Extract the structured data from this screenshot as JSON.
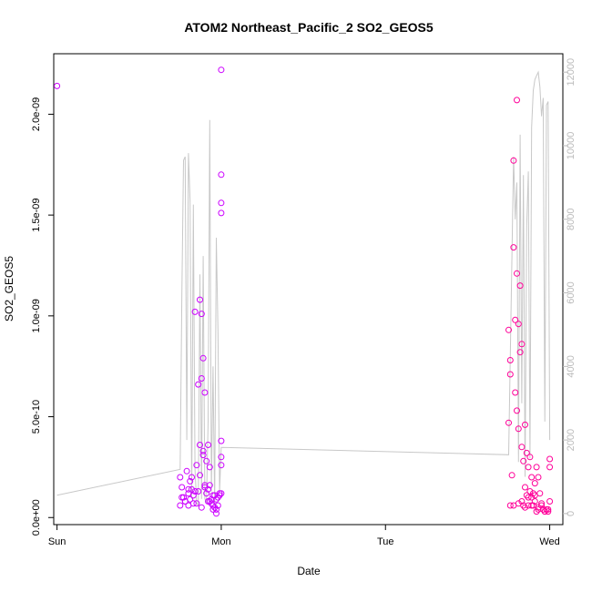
{
  "chart_data": {
    "type": "scatter",
    "title": "ATOM2 Northeast_Pacific_2 SO2_GEOS5",
    "xlabel": "Date",
    "ylabel": "SO2_GEOS5",
    "x_ticks": [
      "Sun",
      "Mon",
      "Tue",
      "Wed"
    ],
    "xlim": [
      -0.02,
      3.08
    ],
    "ylim": [
      -3.5e-11,
      2.3e-09
    ],
    "y_ticks": [
      "0.0e+00",
      "5.0e-10",
      "1.0e-09",
      "1.5e-09",
      "2.0e-09"
    ],
    "y_tick_values": [
      0,
      5e-10,
      1e-09,
      1.5e-09,
      2e-09
    ],
    "y2_ticks": [
      0,
      2000,
      4000,
      6000,
      8000,
      10000,
      12000
    ],
    "y2lim": [
      -300,
      12500
    ],
    "grid": false,
    "point_colors": [
      "#cc00ff",
      "#ff0099"
    ],
    "line_color": "#c8c8c8",
    "series": [
      {
        "kind": "points",
        "x": [
          0.0,
          0.75,
          0.75,
          0.76,
          0.77,
          0.78,
          0.79,
          0.8,
          0.8,
          0.81,
          0.82,
          0.83,
          0.84,
          0.85,
          0.85,
          0.86,
          0.87,
          0.87,
          0.88,
          0.88,
          0.89,
          0.89,
          0.9,
          0.9,
          0.91,
          0.92,
          0.92,
          0.93,
          0.94,
          0.94,
          0.95,
          0.96,
          0.97,
          0.97,
          0.98,
          0.99,
          1.0,
          1.0,
          1.0,
          1.0,
          1.0,
          1.0,
          1.0,
          1.0,
          0.76,
          0.78,
          0.81,
          0.83,
          0.86,
          0.88,
          0.91,
          0.93,
          0.95,
          0.97,
          0.99,
          0.8,
          0.84,
          0.87,
          0.9,
          0.93,
          0.96,
          0.98,
          0.82,
          0.89,
          0.92,
          0.95
        ],
        "y": [
          2.14e-09,
          2e-10,
          6e-11,
          1.5e-10,
          1e-10,
          8e-11,
          2.3e-10,
          1.2e-10,
          6e-11,
          1.8e-10,
          1.4e-10,
          1.1e-10,
          1.02e-09,
          2.6e-10,
          7e-11,
          6.6e-10,
          3.6e-10,
          1.08e-09,
          6.9e-10,
          1.01e-09,
          7.9e-10,
          3.3e-10,
          6.2e-10,
          1.6e-10,
          2.8e-10,
          3.6e-10,
          1.4e-10,
          2.5e-10,
          9e-11,
          7e-11,
          1.1e-10,
          1.1e-10,
          2e-11,
          4e-11,
          6e-11,
          1.2e-10,
          2.22e-09,
          1.7e-09,
          1.56e-09,
          1.51e-09,
          3.8e-10,
          3e-10,
          2.6e-10,
          1.2e-10,
          1e-10,
          8e-11,
          9e-11,
          7e-11,
          1.3e-10,
          5e-11,
          1.2e-10,
          8e-11,
          6e-11,
          9e-11,
          1.1e-10,
          1.4e-10,
          1.3e-10,
          2.1e-10,
          1.5e-10,
          1.6e-10,
          5e-11,
          1e-10,
          2e-10,
          3.1e-10,
          8e-11,
          4e-11
        ],
        "color": "#cc00ff"
      },
      {
        "kind": "points",
        "x": [
          2.75,
          2.75,
          2.76,
          2.76,
          2.77,
          2.78,
          2.78,
          2.79,
          2.79,
          2.8,
          2.8,
          2.8,
          2.81,
          2.81,
          2.82,
          2.82,
          2.83,
          2.83,
          2.84,
          2.84,
          2.85,
          2.85,
          2.86,
          2.86,
          2.87,
          2.87,
          2.88,
          2.88,
          2.89,
          2.89,
          2.9,
          2.9,
          2.91,
          2.91,
          2.92,
          2.92,
          2.93,
          2.93,
          2.94,
          2.95,
          2.96,
          2.97,
          2.98,
          2.99,
          3.0,
          3.0,
          3.0,
          2.76,
          2.78,
          2.81,
          2.83,
          2.85,
          2.87,
          2.89,
          2.91,
          2.93,
          2.95,
          2.97,
          2.99
        ],
        "y": [
          9.3e-10,
          4.7e-10,
          7.8e-10,
          7.1e-10,
          2.1e-10,
          1.77e-09,
          1.34e-09,
          9.8e-10,
          6.2e-10,
          2.07e-09,
          1.21e-09,
          5.3e-10,
          9.6e-10,
          4.4e-10,
          1.15e-09,
          8.2e-10,
          8.6e-10,
          3.5e-10,
          2.8e-10,
          6e-11,
          4.6e-10,
          1.5e-10,
          3.2e-10,
          1.1e-10,
          2.5e-10,
          6e-11,
          3e-10,
          1.3e-10,
          2e-10,
          1e-10,
          1.2e-10,
          6e-11,
          1.7e-10,
          8e-11,
          2.5e-10,
          3e-11,
          2e-10,
          5e-11,
          1.2e-10,
          7e-11,
          4e-11,
          3e-11,
          4e-11,
          3e-11,
          2.9e-10,
          2.5e-10,
          8e-11,
          6e-11,
          6e-11,
          7e-11,
          8e-11,
          5e-11,
          1e-10,
          6e-11,
          1.1e-10,
          4e-11,
          6e-11,
          3e-11,
          4e-11
        ],
        "color": "#ff0099"
      },
      {
        "kind": "line",
        "axis": "right",
        "x": [
          0.0,
          0.75,
          0.76,
          0.77,
          0.78,
          0.79,
          0.8,
          0.81,
          0.82,
          0.83,
          0.84,
          0.85,
          0.86,
          0.87,
          0.88,
          0.89,
          0.9,
          0.91,
          0.92,
          0.93,
          0.94,
          0.95,
          0.96,
          0.97,
          0.98,
          0.99,
          1.0,
          2.75,
          2.77,
          2.78,
          2.79,
          2.8,
          2.81,
          2.82,
          2.83,
          2.84,
          2.85,
          2.86,
          2.87,
          2.88,
          2.89,
          2.9,
          2.91,
          2.92,
          2.93,
          2.94,
          2.95,
          2.96,
          2.97,
          2.98,
          2.99,
          3.0
        ],
        "y": [
          500,
          1200,
          6000,
          9600,
          9700,
          2000,
          9800,
          8500,
          400,
          8400,
          1200,
          300,
          200,
          6500,
          400,
          7000,
          400,
          300,
          2500,
          10700,
          600,
          4000,
          200,
          7500,
          5000,
          600,
          1800,
          1600,
          7000,
          9700,
          8000,
          9000,
          1400,
          10300,
          3000,
          9200,
          1000,
          7800,
          9300,
          1500,
          10500,
          11500,
          11800,
          11900,
          12000,
          11600,
          10800,
          11300,
          2500,
          11100,
          11200,
          2000
        ]
      }
    ]
  }
}
